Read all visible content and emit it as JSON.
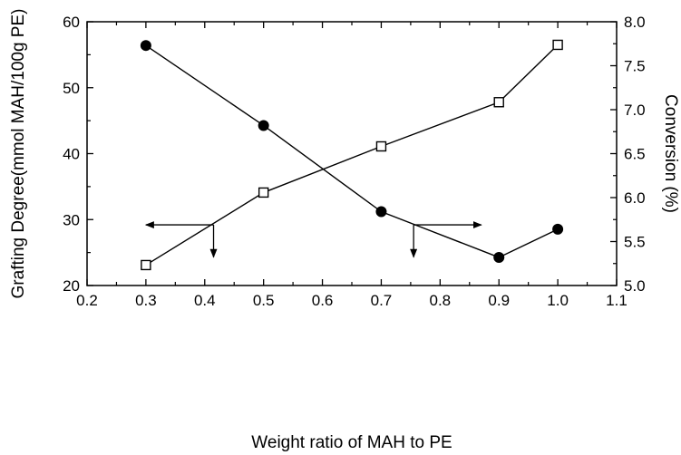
{
  "chart_data": {
    "type": "line",
    "xlabel": "Weight ratio of MAH to PE",
    "ylabel": "Grafting Degree(mmol MAH/100g PE)",
    "y2label": "Conversion (%)",
    "xlim": [
      0.2,
      1.1
    ],
    "ylim": [
      20,
      60
    ],
    "y2lim": [
      5.0,
      8.0
    ],
    "xticks": [
      "0.2",
      "0.3",
      "0.4",
      "0.5",
      "0.6",
      "0.7",
      "0.8",
      "0.9",
      "1.0",
      "1.1"
    ],
    "yticks": [
      "20",
      "30",
      "40",
      "50",
      "60"
    ],
    "y2ticks": [
      "5.0",
      "5.5",
      "6.0",
      "6.5",
      "7.0",
      "7.5",
      "8.0"
    ],
    "grid": false,
    "legend": "none",
    "series": [
      {
        "axis": "left",
        "marker": "open-square",
        "x": [
          0.3,
          0.5,
          0.7,
          0.9,
          1.0
        ],
        "values": [
          23.1,
          34.1,
          41.1,
          47.8,
          56.5
        ]
      },
      {
        "axis": "right",
        "marker": "filled-circle",
        "x": [
          0.3,
          0.5,
          0.7,
          0.9,
          1.0
        ],
        "values": [
          7.73,
          6.82,
          5.84,
          5.32,
          5.64
        ]
      }
    ],
    "annotations": [
      {
        "type": "arrow-left",
        "x": 0.415,
        "y": 29.2,
        "x_end": 0.3,
        "axis": "left"
      },
      {
        "type": "arrow-down",
        "x": 0.415,
        "y": 29.2,
        "y_end": 24.3,
        "axis": "left"
      },
      {
        "type": "arrow-right",
        "x": 0.755,
        "y": 29.2,
        "x_end": 0.87,
        "axis": "left"
      },
      {
        "type": "arrow-down",
        "x": 0.755,
        "y": 29.2,
        "y_end": 24.3,
        "axis": "left"
      }
    ]
  }
}
